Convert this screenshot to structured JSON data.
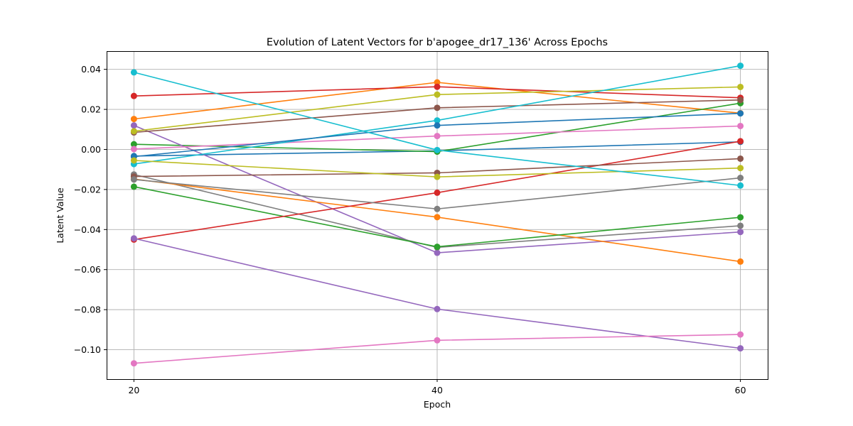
{
  "chart_data": {
    "type": "line",
    "title": "Evolution of Latent Vectors for b'apogee_dr17_136' Across Epochs",
    "xlabel": "Epoch",
    "ylabel": "Latent Value",
    "x": [
      20,
      40,
      60
    ],
    "xticks": [
      "20",
      "40",
      "60"
    ],
    "yticks": [
      "0.04",
      "0.02",
      "0.00",
      "−0.02",
      "−0.04",
      "−0.06",
      "−0.08",
      "−0.10"
    ],
    "ytick_values": [
      0.04,
      0.02,
      0.0,
      -0.02,
      -0.04,
      -0.06,
      -0.08,
      -0.1
    ],
    "xlim": [
      18.2,
      61.8
    ],
    "ylim": [
      -0.1147,
      0.0491
    ],
    "grid": true,
    "series": [
      {
        "color": "#1f77b4",
        "values": [
          -0.0033,
          -0.0007,
          0.0038
        ]
      },
      {
        "color": "#ff7f0e",
        "values": [
          0.0152,
          0.0335,
          0.0181
        ]
      },
      {
        "color": "#2ca02c",
        "values": [
          0.0026,
          -0.0011,
          0.0231
        ]
      },
      {
        "color": "#d62728",
        "values": [
          0.0267,
          0.0313,
          0.0258
        ]
      },
      {
        "color": "#9467bd",
        "values": [
          0.012,
          -0.0516,
          -0.0412
        ]
      },
      {
        "color": "#8c564b",
        "values": [
          0.0085,
          0.0208,
          0.0247
        ]
      },
      {
        "color": "#e377c2",
        "values": [
          0.0002,
          0.0067,
          0.0117
        ]
      },
      {
        "color": "#7f7f7f",
        "values": [
          -0.0125,
          -0.0489,
          -0.0381
        ]
      },
      {
        "color": "#bcbd22",
        "values": [
          0.0091,
          0.0274,
          0.0312
        ]
      },
      {
        "color": "#17becf",
        "values": [
          -0.0073,
          0.0145,
          0.0418
        ]
      },
      {
        "color": "#1f77b4",
        "values": [
          -0.0036,
          0.012,
          0.018
        ]
      },
      {
        "color": "#ff7f0e",
        "values": [
          -0.0148,
          -0.0338,
          -0.056
        ]
      },
      {
        "color": "#2ca02c",
        "values": [
          -0.0186,
          -0.0486,
          -0.0339
        ]
      },
      {
        "color": "#d62728",
        "values": [
          -0.045,
          -0.0216,
          0.0041
        ]
      },
      {
        "color": "#9467bd",
        "values": [
          -0.0444,
          -0.0797,
          -0.0993
        ]
      },
      {
        "color": "#8c564b",
        "values": [
          -0.0135,
          -0.0117,
          -0.0046
        ]
      },
      {
        "color": "#e377c2",
        "values": [
          -0.1068,
          -0.0953,
          -0.0924
        ]
      },
      {
        "color": "#7f7f7f",
        "values": [
          -0.015,
          -0.0297,
          -0.0142
        ]
      },
      {
        "color": "#bcbd22",
        "values": [
          -0.0055,
          -0.0137,
          -0.0093
        ]
      },
      {
        "color": "#17becf",
        "values": [
          0.0385,
          -0.0003,
          -0.018
        ]
      }
    ]
  }
}
